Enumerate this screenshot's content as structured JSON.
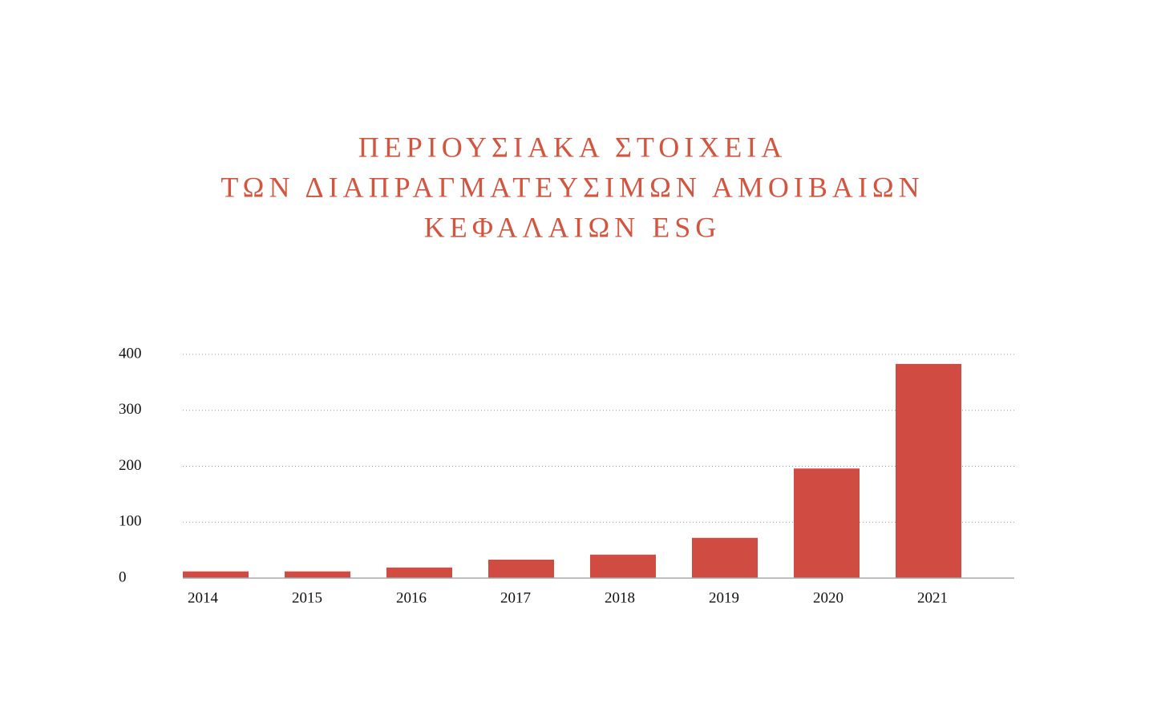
{
  "chart_data": {
    "type": "bar",
    "title": [
      "ΠΕΡΙΟΥΣΙΑΚΑ ΣΤΟΙΧΕΙΑ",
      "ΤΩΝ ΔΙΑΠΡΑΓΜΑΤΕΥΣΙΜΩΝ ΑΜΟΙΒΑΙΩΝ",
      "ΚΕΦΑΛΑΙΩΝ ESG"
    ],
    "categories": [
      "2014",
      "2015",
      "2016",
      "2017",
      "2018",
      "2019",
      "2020",
      "2021"
    ],
    "values": [
      12,
      12,
      19,
      33,
      42,
      72,
      196,
      383
    ],
    "color": "#d04c42",
    "ylim": [
      0,
      400
    ],
    "yticks": [
      0,
      100,
      200,
      300,
      400
    ],
    "grid": true
  }
}
